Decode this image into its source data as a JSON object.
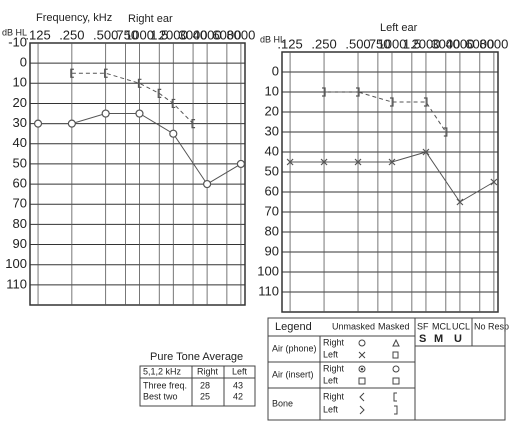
{
  "chart_data": [
    {
      "type": "line",
      "title": "Right ear",
      "x_label": "Frequency, kHz",
      "y_label": "dB HL",
      "log_x": true,
      "grid": true,
      "xlim": [
        106,
        8700
      ],
      "ylim": [
        -10,
        120
      ],
      "xticks": [
        {
          "value": 125,
          "label": ".125"
        },
        {
          "value": 250,
          "label": ".250"
        },
        {
          "value": 500,
          "label": ".500"
        },
        {
          "value": 750,
          "label": ".750"
        },
        1000,
        {
          "value": 1500,
          "label": "1.5"
        },
        2000,
        3000,
        4000,
        6000,
        8000
      ],
      "yticks": [
        -10,
        0,
        10,
        20,
        30,
        40,
        50,
        60,
        70,
        80,
        90,
        100,
        110
      ],
      "series": [
        {
          "marker": "o",
          "dashed": false,
          "color": "#555555",
          "x": [
            125,
            250,
            500,
            1000,
            2000,
            4000,
            8000
          ],
          "values": [
            30,
            30,
            25,
            25,
            35,
            60,
            50
          ]
        },
        {
          "marker": "[",
          "dashed": true,
          "color": "#555555",
          "x": [
            250,
            500,
            1000,
            1500,
            2000,
            3000
          ],
          "values": [
            5,
            5,
            10,
            15,
            20,
            30
          ]
        }
      ]
    },
    {
      "type": "line",
      "title": "Left ear",
      "y_label": "dB HL",
      "log_x": true,
      "grid": true,
      "xlim": [
        106,
        8700
      ],
      "ylim": [
        -10,
        120
      ],
      "xticks": [
        {
          "value": 125,
          "label": ".125"
        },
        {
          "value": 250,
          "label": ".250"
        },
        {
          "value": 500,
          "label": ".500"
        },
        {
          "value": 750,
          "label": ".750"
        },
        1000,
        {
          "value": 1500,
          "label": "1.5"
        },
        2000,
        3000,
        4000,
        6000,
        8000
      ],
      "yticks": [
        0,
        10,
        20,
        30,
        40,
        50,
        60,
        70,
        80,
        90,
        100,
        110
      ],
      "series": [
        {
          "marker": "x",
          "dashed": false,
          "color": "#555555",
          "x": [
            125,
            250,
            500,
            1000,
            2000,
            4000,
            8000
          ],
          "values": [
            45,
            45,
            45,
            45,
            40,
            65,
            55
          ]
        },
        {
          "marker": "]",
          "dashed": true,
          "color": "#555555",
          "x": [
            250,
            500,
            1000,
            2000,
            3000
          ],
          "values": [
            10,
            10,
            15,
            15,
            30
          ]
        }
      ]
    }
  ],
  "pta": {
    "title": "Pure Tone Average",
    "headers": [
      "5,1,2 kHz",
      "Right",
      "Left"
    ],
    "rows": [
      [
        "Three freq.",
        "28",
        "43"
      ],
      [
        "Best two",
        "25",
        "42"
      ]
    ]
  },
  "legend": {
    "title": "Legend",
    "columns": [
      "Unmasked",
      "Masked"
    ],
    "rows": [
      {
        "label": "Air (phone)",
        "sides": [
          "Right",
          "Left"
        ]
      },
      {
        "label": "Air (insert)",
        "sides": [
          "Right",
          "Left"
        ]
      },
      {
        "label": "Bone",
        "sides": [
          "Right",
          "Left"
        ]
      }
    ]
  },
  "sf": {
    "headers": [
      "SF",
      "MCL",
      "UCL",
      "No Resp"
    ],
    "marks": [
      "S",
      "M",
      "U"
    ]
  }
}
